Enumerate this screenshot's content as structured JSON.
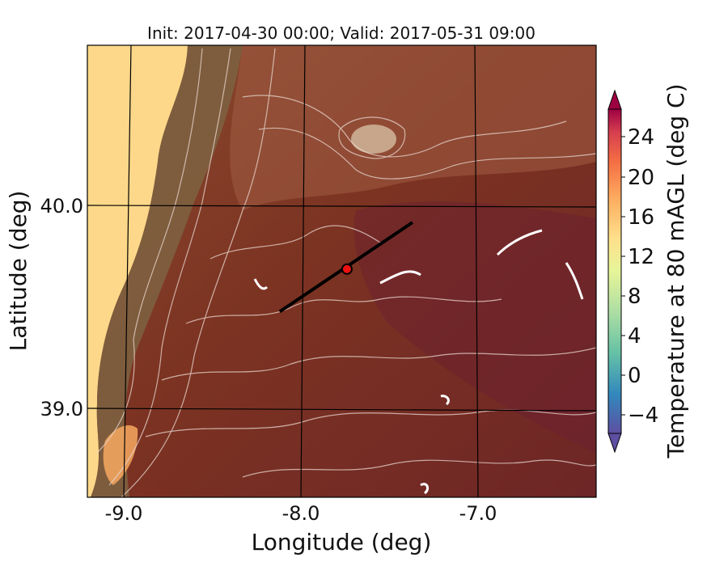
{
  "title": "Init: 2017-04-30 00:00; Valid: 2017-05-31 09:00",
  "axes": {
    "xlabel": "Longitude (deg)",
    "ylabel": "Latitude (deg)",
    "xticks": [
      "-9.0",
      "-8.0",
      "-7.0"
    ],
    "yticks": [
      "40.0",
      "39.0"
    ]
  },
  "colorbar": {
    "label": "Temperature at 80 mAGL (deg C)",
    "ticks": [
      "24",
      "20",
      "16",
      "12",
      "8",
      "4",
      "0",
      "−4"
    ],
    "range": [
      -6,
      28
    ],
    "extend": "both"
  },
  "map": {
    "ocean_color": "#fdd88a",
    "land_color": "#7e3a24",
    "grid": true,
    "transect": {
      "start_lon": -8.12,
      "start_lat": 39.48,
      "end_lon": -7.37,
      "end_lat": 39.92
    },
    "marker": {
      "lon": -7.74,
      "lat": 39.69,
      "color": "#ee1111"
    }
  }
}
